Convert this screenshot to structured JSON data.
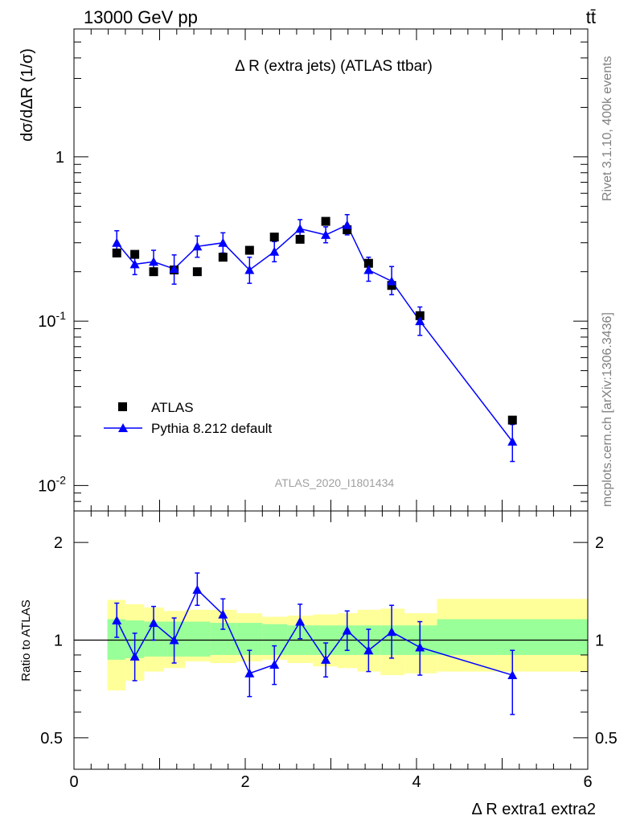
{
  "header": {
    "energy_label": "13000 GeV pp",
    "process_label": "tt̄"
  },
  "side_labels": {
    "rivet": "Rivet 3.1.10,  400k events",
    "mcplots": "mcplots.cern.ch [arXiv:1306.3436]"
  },
  "chart_data": [
    {
      "type": "scatter",
      "title": "Δ R (extra jets) (ATLAS ttbar)",
      "ylabel": "dσ/dΔR (1/σ)",
      "analysis_tag": "ATLAS_2020_I1801434",
      "yscale": "log",
      "xlim": [
        0,
        6
      ],
      "ylim": [
        0.007,
        6
      ],
      "y_ticks": [
        "10^-2",
        "10^-1",
        "1"
      ],
      "legend": {
        "position": "bottom-left",
        "entries": [
          "ATLAS",
          "Pythia 8.212 default"
        ]
      },
      "series": [
        {
          "name": "ATLAS",
          "color": "#000000",
          "marker": "square",
          "x": [
            0.5,
            0.71,
            0.93,
            1.17,
            1.44,
            1.74,
            2.05,
            2.34,
            2.64,
            2.94,
            3.19,
            3.44,
            3.71,
            4.04,
            5.12
          ],
          "y": [
            0.26,
            0.255,
            0.2,
            0.205,
            0.2,
            0.245,
            0.27,
            0.325,
            0.315,
            0.405,
            0.36,
            0.225,
            0.165,
            0.108,
            0.025
          ]
        },
        {
          "name": "Pythia 8.212 default",
          "color": "#0000ff",
          "marker": "triangle",
          "x": [
            0.5,
            0.71,
            0.93,
            1.17,
            1.44,
            1.74,
            2.05,
            2.34,
            2.64,
            2.94,
            3.19,
            3.44,
            3.71,
            4.04,
            5.12
          ],
          "y": [
            0.3,
            0.222,
            0.23,
            0.208,
            0.285,
            0.3,
            0.205,
            0.265,
            0.365,
            0.335,
            0.385,
            0.205,
            0.175,
            0.1,
            0.0185
          ],
          "err_low": [
            0.04,
            0.03,
            0.035,
            0.04,
            0.04,
            0.04,
            0.035,
            0.035,
            0.045,
            0.035,
            0.05,
            0.03,
            0.03,
            0.018,
            0.0045
          ],
          "err_high": [
            0.055,
            0.04,
            0.04,
            0.045,
            0.045,
            0.045,
            0.04,
            0.04,
            0.05,
            0.04,
            0.06,
            0.04,
            0.04,
            0.022,
            0.005
          ]
        }
      ]
    },
    {
      "type": "scatter",
      "ylabel": "Ratio to ATLAS",
      "xlabel": "Δ R extra1 extra2",
      "yscale": "log",
      "xlim": [
        0,
        6
      ],
      "ylim": [
        0.4,
        2.5
      ],
      "y_ticks": [
        "0.5",
        "1",
        "2"
      ],
      "x_ticks": [
        "0",
        "2",
        "4",
        "6"
      ],
      "reference_line": 1,
      "bands": {
        "edges": [
          0.39,
          0.6,
          0.82,
          1.05,
          1.3,
          1.59,
          1.9,
          2.2,
          2.49,
          2.79,
          3.08,
          3.31,
          3.58,
          3.86,
          4.24,
          6.0
        ],
        "green_low": [
          0.87,
          0.88,
          0.89,
          0.89,
          0.89,
          0.9,
          0.9,
          0.9,
          0.9,
          0.9,
          0.9,
          0.9,
          0.9,
          0.9,
          0.9
        ],
        "green_high": [
          1.16,
          1.15,
          1.14,
          1.14,
          1.14,
          1.13,
          1.13,
          1.12,
          1.11,
          1.11,
          1.11,
          1.11,
          1.11,
          1.11,
          1.16
        ],
        "yellow_low": [
          0.7,
          0.75,
          0.8,
          0.82,
          0.86,
          0.85,
          0.86,
          0.87,
          0.85,
          0.83,
          0.82,
          0.8,
          0.78,
          0.79,
          0.8
        ],
        "yellow_high": [
          1.33,
          1.29,
          1.26,
          1.23,
          1.24,
          1.24,
          1.21,
          1.18,
          1.19,
          1.2,
          1.21,
          1.24,
          1.25,
          1.21,
          1.34
        ]
      },
      "series": [
        {
          "name": "Pythia 8.212 default",
          "color": "#0000ff",
          "marker": "triangle",
          "x": [
            0.5,
            0.71,
            0.93,
            1.17,
            1.44,
            1.74,
            2.05,
            2.34,
            2.64,
            2.94,
            3.19,
            3.44,
            3.71,
            4.04,
            5.12
          ],
          "y": [
            1.15,
            0.89,
            1.13,
            1.0,
            1.43,
            1.2,
            0.79,
            0.84,
            1.14,
            0.87,
            1.07,
            0.93,
            1.06,
            0.95,
            0.78
          ],
          "err_low": [
            0.13,
            0.14,
            0.13,
            0.15,
            0.15,
            0.12,
            0.12,
            0.11,
            0.13,
            0.1,
            0.14,
            0.13,
            0.18,
            0.17,
            0.19
          ],
          "err_high": [
            0.15,
            0.16,
            0.14,
            0.17,
            0.18,
            0.14,
            0.14,
            0.12,
            0.15,
            0.11,
            0.16,
            0.15,
            0.22,
            0.19,
            0.15
          ]
        }
      ]
    }
  ]
}
